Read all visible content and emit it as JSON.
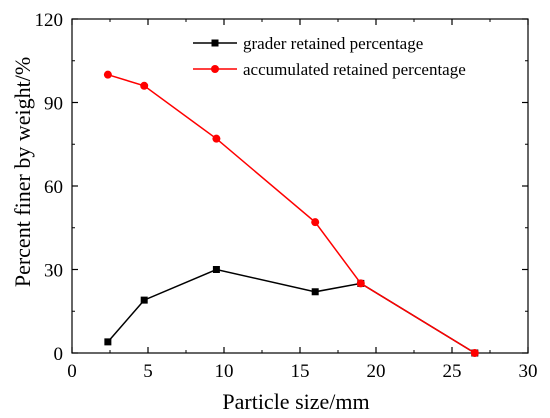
{
  "chart_data": {
    "type": "line",
    "xlabel": "Particle size/mm",
    "ylabel": "Percent finer by weight/%",
    "xlim": [
      0,
      30
    ],
    "ylim": [
      0,
      120
    ],
    "x_ticks": [
      0,
      5,
      10,
      15,
      20,
      25,
      30
    ],
    "y_ticks": [
      0,
      30,
      60,
      90,
      120
    ],
    "grid": false,
    "legend_position": "top-right",
    "series": [
      {
        "name": "grader retained percentage",
        "color": "#000000",
        "marker": "square",
        "x": [
          2.36,
          4.75,
          9.5,
          16,
          19,
          26.5
        ],
        "y": [
          4,
          19,
          30,
          22,
          25,
          0
        ]
      },
      {
        "name": "accumulated retained percentage",
        "color": "#ff0000",
        "marker": "circle",
        "x": [
          2.36,
          4.75,
          9.5,
          16,
          19,
          26.5
        ],
        "y": [
          100,
          96,
          77,
          47,
          25,
          0
        ]
      }
    ]
  }
}
